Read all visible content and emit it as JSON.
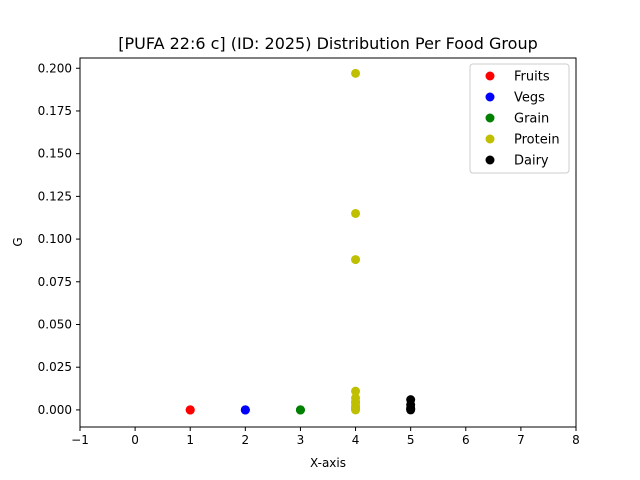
{
  "chart_data": {
    "type": "scatter",
    "title": "[PUFA 22:6 c] (ID: 2025) Distribution Per Food Group",
    "xlabel": "X-axis",
    "ylabel": "G",
    "xlim": [
      -1,
      8
    ],
    "ylim": [
      -0.01,
      0.206
    ],
    "xticks": [
      -1,
      0,
      1,
      2,
      3,
      4,
      5,
      6,
      7,
      8
    ],
    "yticks": [
      0.0,
      0.025,
      0.05,
      0.075,
      0.1,
      0.125,
      0.15,
      0.175,
      0.2
    ],
    "ytick_labels": [
      "0.000",
      "0.025",
      "0.050",
      "0.075",
      "0.100",
      "0.125",
      "0.150",
      "0.175",
      "0.200"
    ],
    "grid": false,
    "legend_position": "top-right",
    "series": [
      {
        "name": "Fruits",
        "color": "#ff0000",
        "x": [
          1,
          1,
          1
        ],
        "y": [
          0.0,
          0.0,
          0.0
        ]
      },
      {
        "name": "Vegs",
        "color": "#0000ff",
        "x": [
          2,
          2,
          2
        ],
        "y": [
          0.0,
          0.0,
          0.0
        ]
      },
      {
        "name": "Grain",
        "color": "#008000",
        "x": [
          3,
          3,
          3
        ],
        "y": [
          0.0,
          0.0,
          0.0
        ]
      },
      {
        "name": "Protein",
        "color": "#bfbf00",
        "x": [
          4,
          4,
          4,
          4,
          4,
          4,
          4,
          4,
          4,
          4,
          4
        ],
        "y": [
          0.197,
          0.115,
          0.088,
          0.011,
          0.007,
          0.005,
          0.004,
          0.002,
          0.001,
          0.0005,
          0.0
        ]
      },
      {
        "name": "Dairy",
        "color": "#000000",
        "x": [
          5,
          5,
          5,
          5,
          5
        ],
        "y": [
          0.006,
          0.003,
          0.001,
          0.0005,
          0.0
        ]
      }
    ]
  }
}
